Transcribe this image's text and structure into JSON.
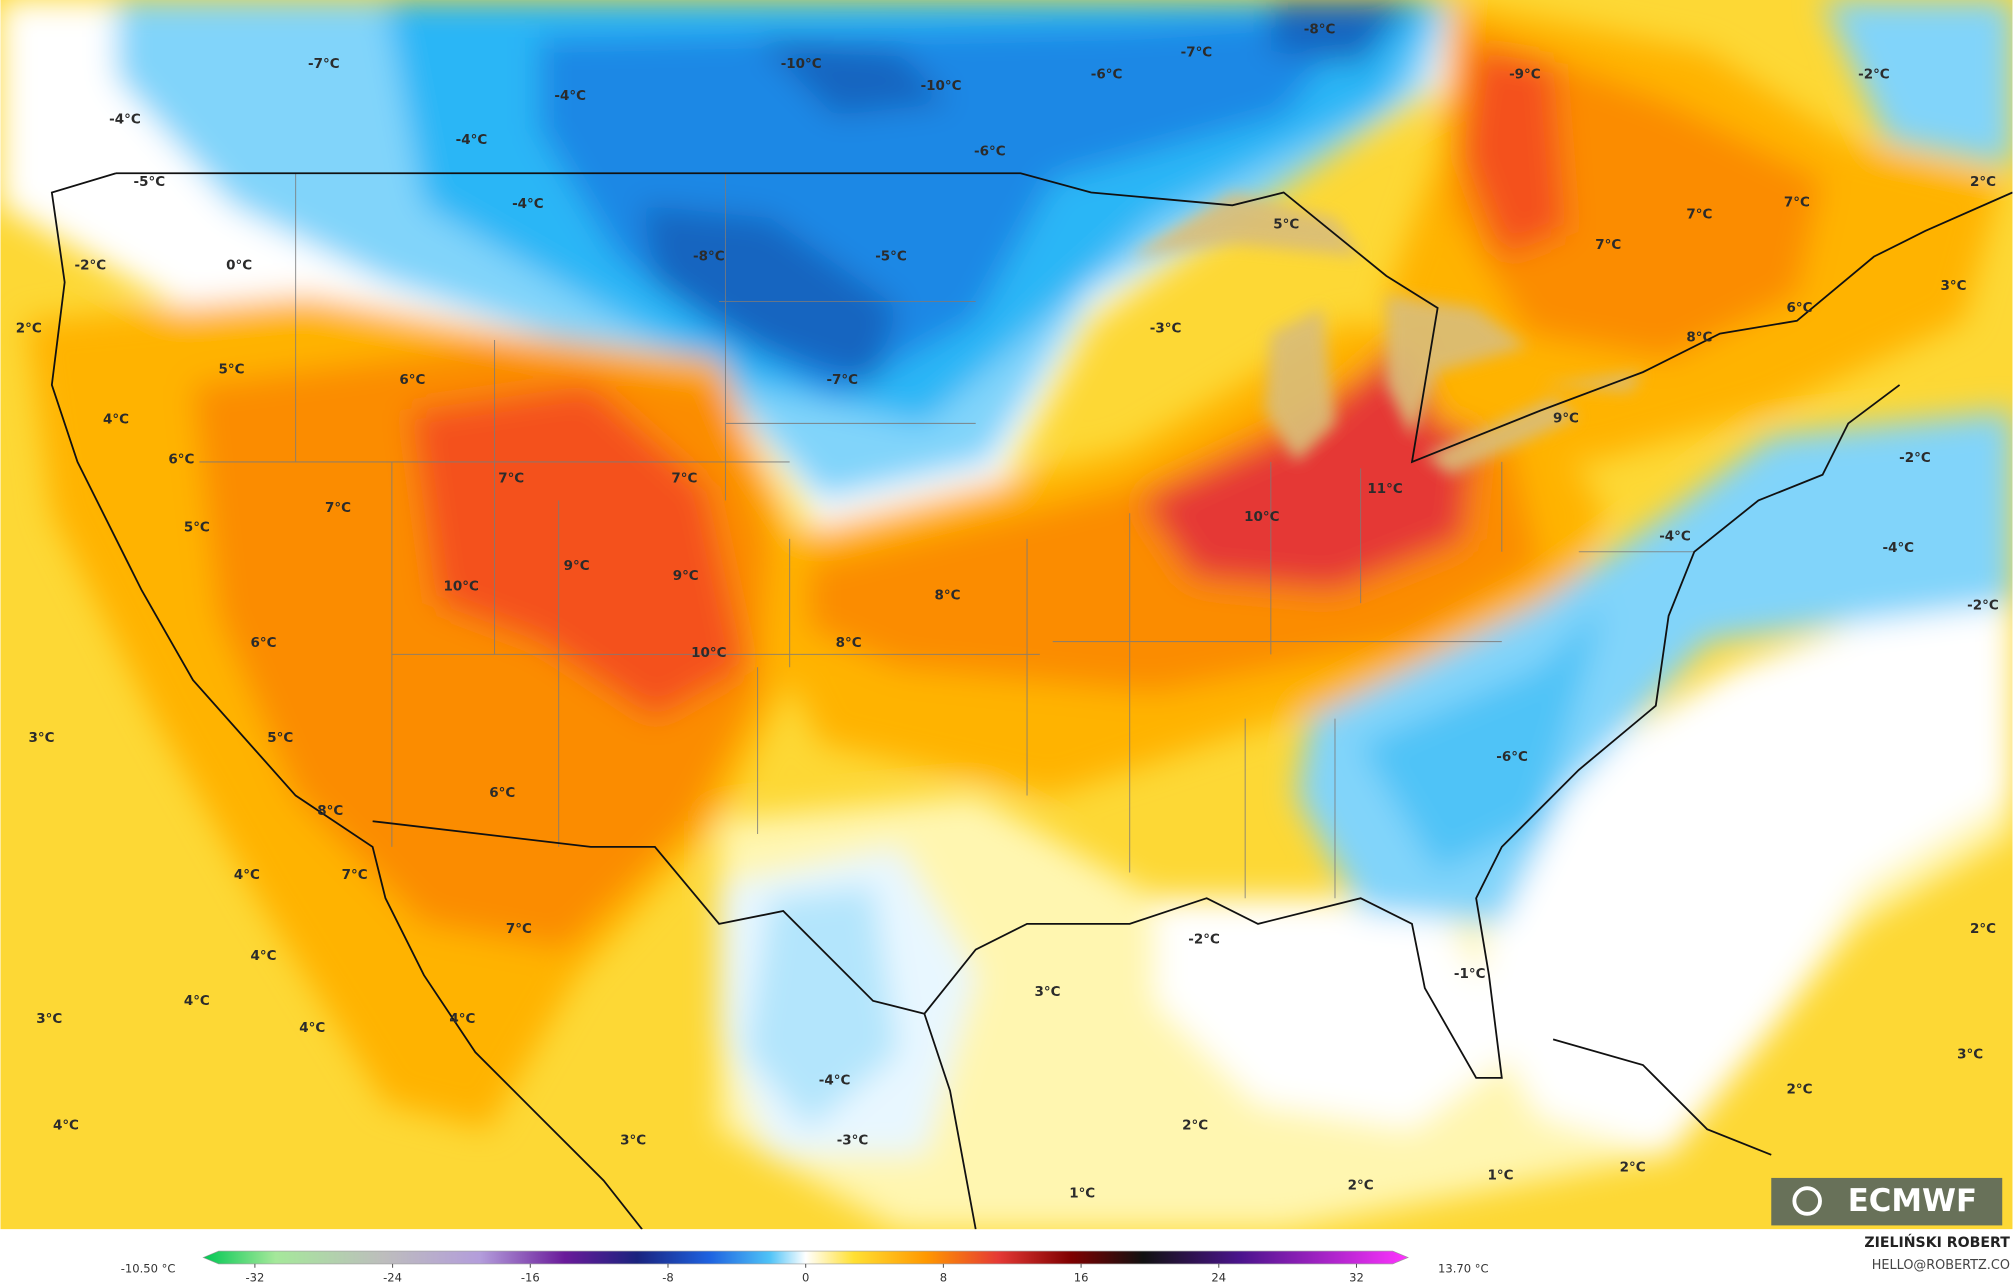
{
  "map": {
    "temperature_labels": [
      "-7°C",
      "-4°C",
      "-4°C",
      "-10°C",
      "-10°C",
      "-6°C",
      "-7°C",
      "-8°C",
      "-9°C",
      "-2°C",
      "-4°C",
      "-6°C",
      "-5°C",
      "2°C",
      "-4°C",
      "5°C",
      "7°C",
      "7°C",
      "-2°C",
      "0°C",
      "-8°C",
      "-5°C",
      "7°C",
      "3°C",
      "6°C",
      "2°C",
      "-3°C",
      "8°C",
      "5°C",
      "6°C",
      "-7°C",
      "4°C",
      "9°C",
      "6°C",
      "-2°C",
      "7°C",
      "7°C",
      "11°C",
      "7°C",
      "10°C",
      "5°C",
      "-4°C",
      "-4°C",
      "9°C",
      "9°C",
      "10°C",
      "8°C",
      "-2°C",
      "6°C",
      "8°C",
      "10°C",
      "3°C",
      "5°C",
      "-6°C",
      "6°C",
      "8°C",
      "4°C",
      "7°C",
      "7°C",
      "2°C",
      "4°C",
      "-2°C",
      "-1°C",
      "3°C",
      "4°C",
      "3°C",
      "4°C",
      "4°C",
      "3°C",
      "-4°C",
      "2°C",
      "4°C",
      "2°C",
      "3°C",
      "-3°C",
      "1°C",
      "2°C",
      "1°C",
      "2°C"
    ]
  },
  "colorbar": {
    "min_label": "-10.50 °C",
    "max_label": "13.70 °C",
    "range": [
      -35,
      35
    ],
    "ticks": [
      -32,
      -24,
      -16,
      -8,
      0,
      8,
      16,
      24,
      32
    ]
  },
  "credits": {
    "author": "ZIELIŃSKI ROBERT",
    "contact": "HELLO@ROBERTZ.CO"
  },
  "logo": "ECMWF"
}
